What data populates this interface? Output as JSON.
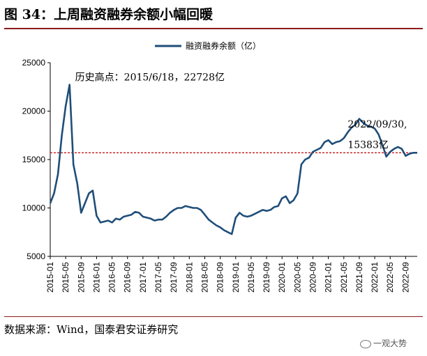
{
  "header": {
    "title": "图 34：上周融资融券余额小幅回暖"
  },
  "footer": {
    "source": "数据来源：Wind，国泰君安证券研究",
    "watermark": "一观大势"
  },
  "colors": {
    "line": "#1f4e79",
    "reference": "#c00000",
    "title_rule": "#8b1a1a"
  },
  "chart_data": {
    "type": "line",
    "title": "",
    "xlabel": "",
    "ylabel": "",
    "ylim": [
      5000,
      25000
    ],
    "yticks": [
      5000,
      10000,
      15000,
      20000,
      25000
    ],
    "xlim": [
      "2015-01",
      "2022-12"
    ],
    "xticks": [
      "2015-01",
      "2015-05",
      "2015-09",
      "2016-01",
      "2016-05",
      "2016-09",
      "2017-01",
      "2017-05",
      "2017-09",
      "2018-01",
      "2018-05",
      "2018-09",
      "2019-01",
      "2019-05",
      "2019-09",
      "2020-01",
      "2020-05",
      "2020-09",
      "2021-01",
      "2021-05",
      "2021-09",
      "2022-01",
      "2022-05",
      "2022-09"
    ],
    "legend": {
      "position": "top-center"
    },
    "grid": false,
    "reference_line": {
      "y": 15700,
      "style": "dashed"
    },
    "annotations": [
      {
        "text": "历史高点：2015/6/18，22728亿",
        "x": "2015-06",
        "y": 22728
      },
      {
        "text": "2022/09/30,",
        "x": "2021-06",
        "y": 17600
      },
      {
        "text": "15383亿",
        "x": "2021-06",
        "y": 16200
      }
    ],
    "series": [
      {
        "name": "融资融券余额（亿）",
        "x": [
          "2015-01",
          "2015-02",
          "2015-03",
          "2015-04",
          "2015-05",
          "2015-06",
          "2015-07",
          "2015-08",
          "2015-09",
          "2015-10",
          "2015-11",
          "2015-12",
          "2016-01",
          "2016-02",
          "2016-03",
          "2016-04",
          "2016-05",
          "2016-06",
          "2016-07",
          "2016-08",
          "2016-09",
          "2016-10",
          "2016-11",
          "2016-12",
          "2017-01",
          "2017-02",
          "2017-03",
          "2017-04",
          "2017-05",
          "2017-06",
          "2017-07",
          "2017-08",
          "2017-09",
          "2017-10",
          "2017-11",
          "2017-12",
          "2018-01",
          "2018-02",
          "2018-03",
          "2018-04",
          "2018-05",
          "2018-06",
          "2018-07",
          "2018-08",
          "2018-09",
          "2018-10",
          "2018-11",
          "2018-12",
          "2019-01",
          "2019-02",
          "2019-03",
          "2019-04",
          "2019-05",
          "2019-06",
          "2019-07",
          "2019-08",
          "2019-09",
          "2019-10",
          "2019-11",
          "2019-12",
          "2020-01",
          "2020-02",
          "2020-03",
          "2020-04",
          "2020-05",
          "2020-06",
          "2020-07",
          "2020-08",
          "2020-09",
          "2020-10",
          "2020-11",
          "2020-12",
          "2021-01",
          "2021-02",
          "2021-03",
          "2021-04",
          "2021-05",
          "2021-06",
          "2021-07",
          "2021-08",
          "2021-09",
          "2021-10",
          "2021-11",
          "2021-12",
          "2022-01",
          "2022-02",
          "2022-03",
          "2022-04",
          "2022-05",
          "2022-06",
          "2022-07",
          "2022-08",
          "2022-09",
          "2022-10",
          "2022-11",
          "2022-12"
        ],
        "values": [
          10500,
          11500,
          13500,
          17500,
          20500,
          22728,
          14500,
          12500,
          9500,
          10500,
          11500,
          11800,
          9200,
          8500,
          8600,
          8700,
          8500,
          8900,
          8800,
          9100,
          9200,
          9300,
          9600,
          9500,
          9100,
          9000,
          8900,
          8700,
          8800,
          8800,
          9100,
          9500,
          9800,
          10000,
          10000,
          10200,
          10100,
          10000,
          10000,
          9800,
          9300,
          8800,
          8500,
          8200,
          8000,
          7700,
          7500,
          7300,
          9000,
          9500,
          9200,
          9100,
          9200,
          9400,
          9600,
          9800,
          9700,
          9800,
          10100,
          10200,
          11000,
          11200,
          10500,
          10800,
          11500,
          14500,
          15000,
          15200,
          15800,
          16000,
          16200,
          16800,
          17000,
          16600,
          16800,
          16900,
          17200,
          17800,
          18300,
          18600,
          19200,
          18800,
          18500,
          18400,
          18200,
          17600,
          16500,
          15300,
          15800,
          16100,
          16300,
          16100,
          15383,
          15600,
          15700,
          15700
        ]
      }
    ]
  }
}
